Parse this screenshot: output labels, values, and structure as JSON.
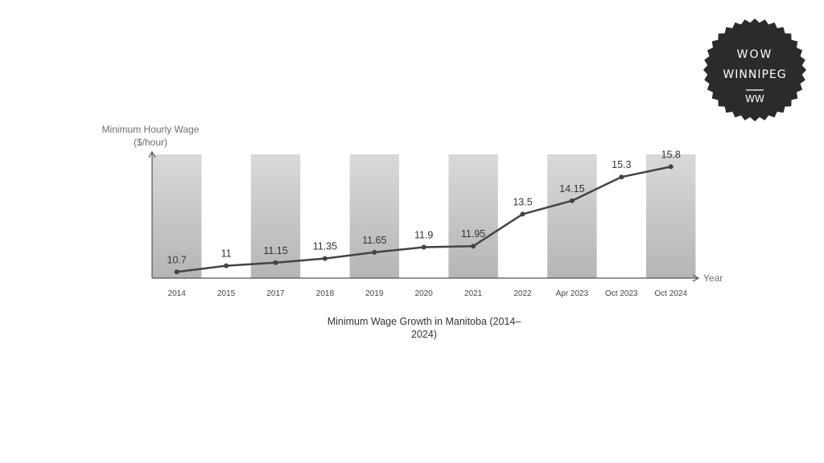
{
  "chart_data": {
    "type": "line",
    "title": "Minimum Wage Growth in Manitoba (2014–2024)",
    "ylabel_line1": "Minimum Hourly Wage",
    "ylabel_line2": "($/hour)",
    "xlabel": "Year",
    "categories": [
      "2014",
      "2015",
      "2017",
      "2018",
      "2019",
      "2020",
      "2021",
      "2022",
      "Apr 2023",
      "Oct 2023",
      "Oct 2024"
    ],
    "values": [
      10.7,
      11,
      11.15,
      11.35,
      11.65,
      11.9,
      11.95,
      13.5,
      14.15,
      15.3,
      15.8
    ],
    "ylim": [
      10.4,
      16.4
    ],
    "grid": false,
    "line_color": "#444444",
    "band_color_top": "#d9d9d9",
    "band_color_bottom": "#b5b5b5"
  },
  "logo": {
    "line1": "WOW",
    "line2": "WINNIPEG",
    "monogram": "WW",
    "color": "#2d2a2a"
  }
}
